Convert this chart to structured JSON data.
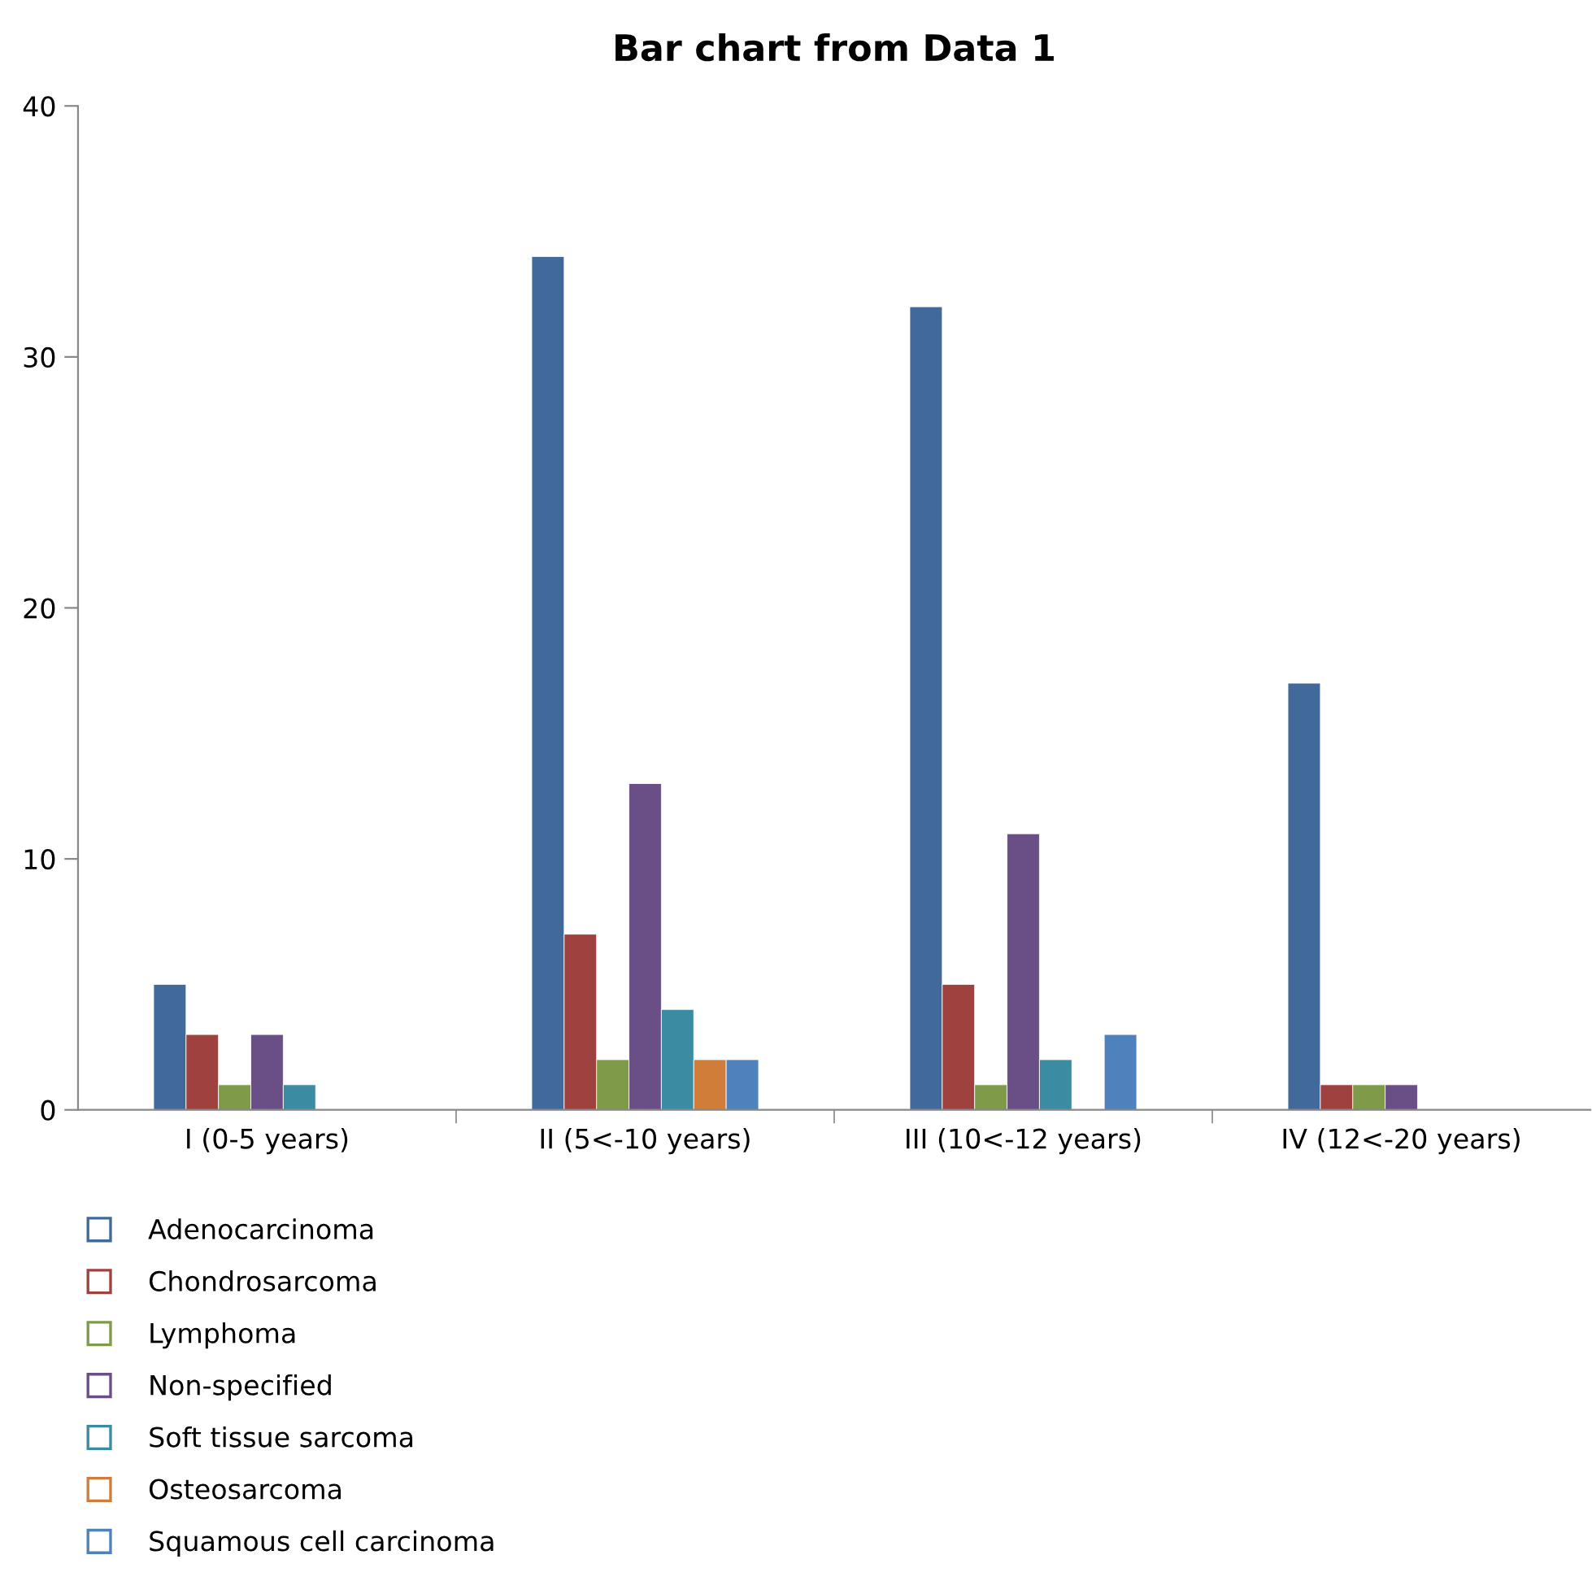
{
  "chart_data": {
    "type": "bar",
    "title": "Bar chart from Data 1",
    "categories": [
      "I (0-5 years)",
      "II (5<-10 years)",
      "III (10<-12 years)",
      "IV (12<-20 years)"
    ],
    "series": [
      {
        "name": "Adenocarcinoma",
        "color": "#416a9b",
        "values": [
          5,
          34,
          32,
          17
        ]
      },
      {
        "name": "Chondrosarcoma",
        "color": "#9e413f",
        "values": [
          3,
          7,
          5,
          1
        ]
      },
      {
        "name": "Lymphoma",
        "color": "#7f9a48",
        "values": [
          1,
          2,
          1,
          1
        ]
      },
      {
        "name": "Non-specified",
        "color": "#6a4f86",
        "values": [
          3,
          13,
          11,
          1
        ]
      },
      {
        "name": "Soft tissue sarcoma",
        "color": "#3b8ca3",
        "values": [
          1,
          4,
          2,
          null
        ]
      },
      {
        "name": "Osteosarcoma",
        "color": "#d07d3a",
        "values": [
          null,
          2,
          null,
          null
        ]
      },
      {
        "name": "Squamous cell carcinoma",
        "color": "#4f81bd",
        "values": [
          null,
          2,
          3,
          null
        ]
      }
    ],
    "ylim": [
      0,
      40
    ],
    "yticks": [
      0,
      10,
      20,
      30,
      40
    ],
    "grid": false,
    "legend": "bottom left"
  }
}
